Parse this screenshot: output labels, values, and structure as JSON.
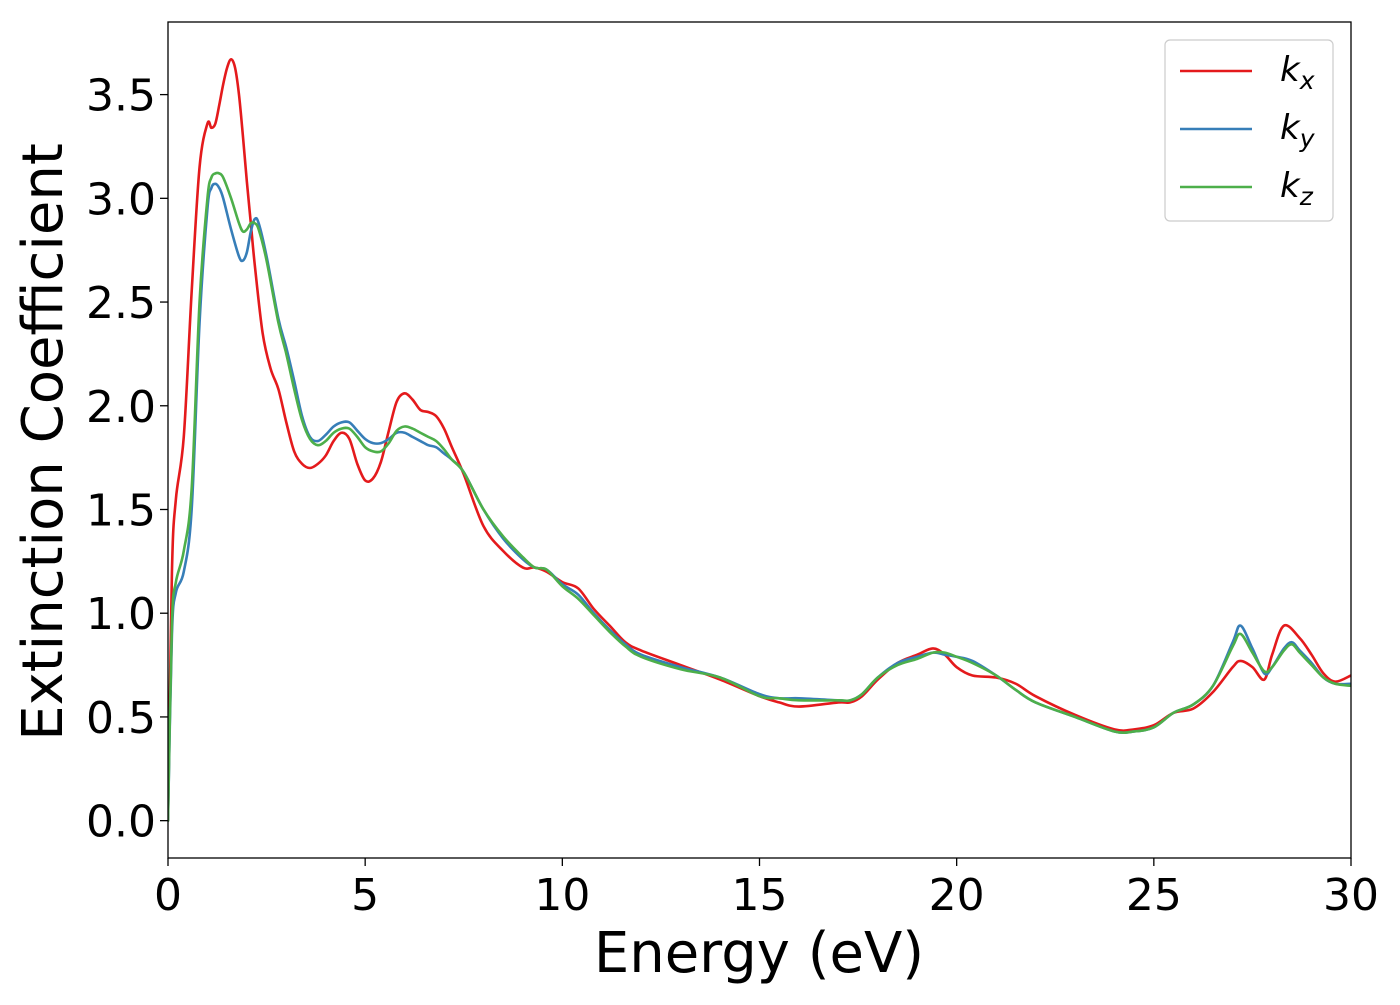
{
  "chart_data": {
    "type": "line",
    "title": "",
    "xlabel": "Energy (eV)",
    "ylabel": "Extinction Coefficient",
    "xlim": [
      0,
      30
    ],
    "ylim": [
      -0.18,
      3.85
    ],
    "xticks": [
      0,
      5,
      10,
      15,
      20,
      25,
      30
    ],
    "xtick_labels": [
      "0",
      "5",
      "10",
      "15",
      "20",
      "25",
      "30"
    ],
    "yticks": [
      0.0,
      0.5,
      1.0,
      1.5,
      2.0,
      2.5,
      3.0,
      3.5
    ],
    "ytick_labels": [
      "0.0",
      "0.5",
      "1.0",
      "1.5",
      "2.0",
      "2.5",
      "3.0",
      "3.5"
    ],
    "grid": false,
    "legend_position": "top-right",
    "series": [
      {
        "name": "k_x",
        "label_base": "k",
        "label_sub": "x",
        "color": "#e41a1c",
        "x": [
          0,
          0.1,
          0.2,
          0.4,
          0.6,
          0.8,
          1.0,
          1.1,
          1.2,
          1.3,
          1.4,
          1.5,
          1.6,
          1.7,
          1.8,
          1.9,
          2.0,
          2.1,
          2.2,
          2.4,
          2.6,
          2.8,
          3.0,
          3.2,
          3.4,
          3.6,
          3.8,
          4.0,
          4.2,
          4.4,
          4.6,
          4.8,
          5.0,
          5.2,
          5.4,
          5.6,
          5.8,
          6.0,
          6.2,
          6.4,
          6.6,
          6.8,
          7.0,
          7.2,
          7.5,
          8.0,
          8.5,
          9.0,
          9.3,
          9.6,
          10.0,
          10.4,
          10.8,
          11.2,
          11.6,
          12.0,
          13.0,
          14.0,
          15.0,
          15.5,
          16.0,
          17.0,
          17.3,
          17.6,
          18.0,
          18.5,
          19.0,
          19.4,
          19.7,
          20.0,
          20.4,
          21.0,
          21.5,
          22.0,
          23.0,
          24.0,
          24.5,
          25.0,
          25.5,
          26.0,
          26.5,
          27.0,
          27.2,
          27.5,
          27.8,
          28.0,
          28.3,
          28.7,
          29.0,
          29.3,
          29.6,
          30.0
        ],
        "values": [
          0.0,
          1.2,
          1.55,
          1.85,
          2.55,
          3.15,
          3.36,
          3.34,
          3.36,
          3.45,
          3.55,
          3.63,
          3.67,
          3.63,
          3.5,
          3.3,
          3.08,
          2.88,
          2.68,
          2.35,
          2.18,
          2.08,
          1.92,
          1.78,
          1.72,
          1.7,
          1.72,
          1.76,
          1.83,
          1.87,
          1.84,
          1.72,
          1.64,
          1.65,
          1.73,
          1.88,
          2.02,
          2.06,
          2.03,
          1.98,
          1.97,
          1.95,
          1.89,
          1.8,
          1.67,
          1.42,
          1.3,
          1.22,
          1.22,
          1.2,
          1.15,
          1.12,
          1.02,
          0.94,
          0.86,
          0.82,
          0.75,
          0.68,
          0.6,
          0.57,
          0.55,
          0.57,
          0.57,
          0.6,
          0.68,
          0.76,
          0.8,
          0.83,
          0.8,
          0.74,
          0.7,
          0.69,
          0.66,
          0.6,
          0.51,
          0.44,
          0.44,
          0.46,
          0.52,
          0.54,
          0.62,
          0.74,
          0.77,
          0.74,
          0.68,
          0.8,
          0.94,
          0.88,
          0.8,
          0.71,
          0.67,
          0.7
        ]
      },
      {
        "name": "k_y",
        "label_base": "k",
        "label_sub": "y",
        "color": "#377eb8",
        "x": [
          0,
          0.1,
          0.2,
          0.4,
          0.6,
          0.8,
          1.0,
          1.1,
          1.2,
          1.3,
          1.4,
          1.6,
          1.8,
          1.9,
          2.0,
          2.1,
          2.2,
          2.3,
          2.5,
          2.8,
          3.0,
          3.2,
          3.4,
          3.6,
          3.8,
          4.0,
          4.2,
          4.4,
          4.6,
          4.8,
          5.0,
          5.2,
          5.4,
          5.6,
          5.8,
          6.0,
          6.2,
          6.4,
          6.6,
          6.8,
          7.0,
          7.2,
          7.5,
          8.0,
          8.5,
          9.0,
          9.3,
          9.6,
          10.0,
          10.4,
          10.8,
          11.2,
          11.6,
          12.0,
          13.0,
          14.0,
          15.0,
          15.5,
          16.0,
          17.0,
          17.3,
          17.6,
          18.0,
          18.5,
          19.0,
          19.4,
          19.7,
          20.0,
          20.4,
          21.0,
          21.5,
          22.0,
          23.0,
          24.0,
          24.5,
          25.0,
          25.5,
          26.0,
          26.5,
          27.0,
          27.2,
          27.5,
          27.8,
          28.0,
          28.3,
          28.5,
          28.7,
          29.0,
          29.3,
          29.6,
          30.0
        ],
        "values": [
          0.0,
          0.9,
          1.1,
          1.2,
          1.5,
          2.4,
          2.95,
          3.05,
          3.07,
          3.05,
          3.0,
          2.85,
          2.72,
          2.7,
          2.74,
          2.84,
          2.9,
          2.88,
          2.72,
          2.42,
          2.28,
          2.12,
          1.95,
          1.85,
          1.83,
          1.86,
          1.9,
          1.92,
          1.92,
          1.88,
          1.84,
          1.82,
          1.82,
          1.84,
          1.87,
          1.87,
          1.85,
          1.83,
          1.81,
          1.8,
          1.77,
          1.74,
          1.68,
          1.5,
          1.36,
          1.26,
          1.22,
          1.21,
          1.14,
          1.09,
          1.0,
          0.92,
          0.85,
          0.8,
          0.74,
          0.69,
          0.61,
          0.59,
          0.59,
          0.58,
          0.58,
          0.61,
          0.69,
          0.76,
          0.79,
          0.81,
          0.8,
          0.79,
          0.77,
          0.7,
          0.63,
          0.57,
          0.5,
          0.43,
          0.43,
          0.45,
          0.52,
          0.56,
          0.65,
          0.86,
          0.94,
          0.83,
          0.71,
          0.74,
          0.83,
          0.86,
          0.82,
          0.76,
          0.69,
          0.66,
          0.66
        ]
      },
      {
        "name": "k_z",
        "label_base": "k",
        "label_sub": "z",
        "color": "#4daf4a",
        "x": [
          0,
          0.1,
          0.2,
          0.4,
          0.6,
          0.8,
          1.0,
          1.1,
          1.2,
          1.3,
          1.4,
          1.6,
          1.8,
          1.9,
          2.0,
          2.1,
          2.2,
          2.3,
          2.5,
          2.8,
          3.0,
          3.2,
          3.4,
          3.6,
          3.8,
          4.0,
          4.2,
          4.4,
          4.6,
          4.8,
          5.0,
          5.2,
          5.4,
          5.6,
          5.8,
          6.0,
          6.2,
          6.4,
          6.6,
          6.8,
          7.0,
          7.2,
          7.5,
          8.0,
          8.5,
          9.0,
          9.3,
          9.6,
          10.0,
          10.4,
          10.8,
          11.2,
          11.6,
          12.0,
          13.0,
          14.0,
          15.0,
          15.5,
          16.0,
          17.0,
          17.3,
          17.6,
          18.0,
          18.5,
          19.0,
          19.4,
          19.7,
          20.0,
          20.4,
          21.0,
          21.5,
          22.0,
          23.0,
          24.0,
          24.5,
          25.0,
          25.5,
          26.0,
          26.5,
          27.0,
          27.2,
          27.5,
          27.8,
          28.0,
          28.3,
          28.5,
          28.7,
          29.0,
          29.3,
          29.6,
          30.0
        ],
        "values": [
          0.0,
          0.95,
          1.15,
          1.3,
          1.6,
          2.5,
          3.0,
          3.1,
          3.12,
          3.12,
          3.1,
          3.0,
          2.88,
          2.84,
          2.85,
          2.88,
          2.88,
          2.85,
          2.7,
          2.4,
          2.25,
          2.08,
          1.93,
          1.84,
          1.81,
          1.83,
          1.87,
          1.89,
          1.89,
          1.85,
          1.8,
          1.78,
          1.78,
          1.82,
          1.88,
          1.9,
          1.89,
          1.87,
          1.85,
          1.83,
          1.79,
          1.74,
          1.68,
          1.5,
          1.37,
          1.27,
          1.22,
          1.21,
          1.13,
          1.07,
          0.99,
          0.91,
          0.84,
          0.79,
          0.73,
          0.69,
          0.6,
          0.59,
          0.58,
          0.58,
          0.58,
          0.61,
          0.69,
          0.75,
          0.78,
          0.81,
          0.81,
          0.79,
          0.76,
          0.7,
          0.63,
          0.57,
          0.5,
          0.43,
          0.43,
          0.45,
          0.52,
          0.56,
          0.65,
          0.84,
          0.9,
          0.81,
          0.72,
          0.74,
          0.82,
          0.85,
          0.81,
          0.75,
          0.69,
          0.66,
          0.65
        ]
      }
    ]
  }
}
